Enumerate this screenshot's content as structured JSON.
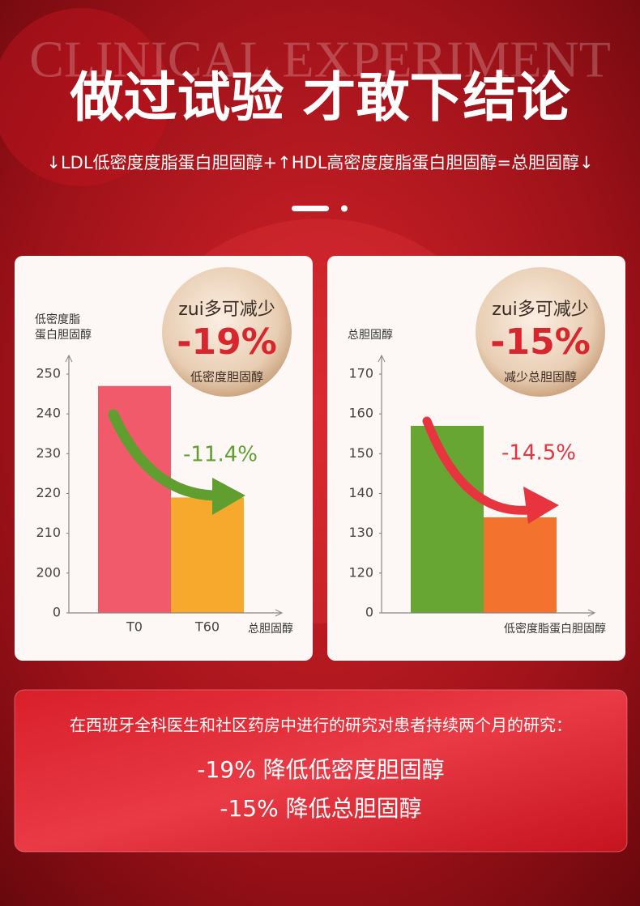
{
  "background_text": "CLINICAL EXPERIMENT",
  "title": "做过试验 才敢下结论",
  "subtitle": "↓LDL低密度度脂蛋白胆固醇+↑HDL高密度度脂蛋白胆固醇=总胆固醇↓",
  "chart_data": [
    {
      "type": "bar",
      "y_label_lines": [
        "低密度脂",
        "蛋白胆固醇"
      ],
      "x_label": "总胆固醇",
      "categories": [
        "T0",
        "T60"
      ],
      "values": [
        247,
        219
      ],
      "colors": [
        "#f05a6b",
        "#f6a92d"
      ],
      "ylim": [
        190,
        250
      ],
      "yticks": [
        {
          "value": 190,
          "label": "0"
        },
        200,
        210,
        220,
        230,
        240,
        250
      ],
      "badge": {
        "top": "zui多可减少",
        "value": "-19%",
        "bottom": "低密度胆固醇"
      },
      "annotation": "-11.4%",
      "annotation_color": "#5f9e2f"
    },
    {
      "type": "bar",
      "y_label_lines": [
        "总胆固醇"
      ],
      "x_label": "低密度脂蛋白胆固醇",
      "categories": [
        null,
        null
      ],
      "values": [
        157,
        134
      ],
      "colors": [
        "#68a634",
        "#f2722e"
      ],
      "ylim": [
        110,
        170
      ],
      "yticks": [
        {
          "value": 110,
          "label": "0"
        },
        120,
        130,
        140,
        150,
        160,
        170
      ],
      "badge": {
        "top": "zui多可减少",
        "value": "-15%",
        "bottom": "减少总胆固醇"
      },
      "annotation": "-14.5%",
      "annotation_color": "#e8343f"
    }
  ],
  "summary": {
    "intro": "在西班牙全科医生和社区药房中进行的研究对患者持续两个月的研究：",
    "lines": [
      "-19% 降低低密度胆固醇",
      "-15% 降低总胆固醇"
    ]
  }
}
